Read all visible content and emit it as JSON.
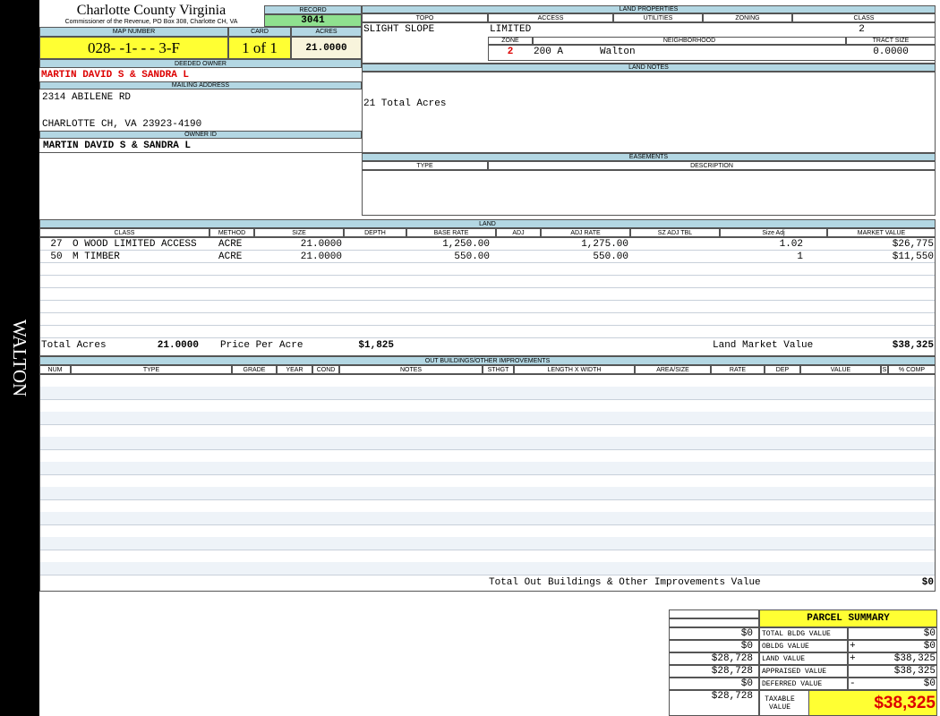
{
  "sidebar": "WALTON",
  "header": {
    "title": "Charlotte County Virginia",
    "subtitle": "Commissioner of the Revenue, PO Box 308, Charlotte CH, VA"
  },
  "record": {
    "label": "RECORD",
    "value": "3041"
  },
  "map_number": {
    "label": "MAP NUMBER",
    "value": "028- -1- - - 3-F"
  },
  "card": {
    "label": "CARD",
    "value": "1 of 1"
  },
  "acres": {
    "label": "ACRES",
    "value": "21.0000"
  },
  "deeded_owner": {
    "label": "DEEDED OWNER",
    "value": "MARTIN DAVID S & SANDRA L"
  },
  "mailing_address": {
    "label": "MAILING ADDRESS",
    "lines": [
      "2314 ABILENE RD",
      "CHARLOTTE CH, VA 23923-4190"
    ]
  },
  "owner_id": {
    "label": "OWNER ID",
    "value": "MARTIN DAVID S & SANDRA L"
  },
  "land_properties": {
    "title": "LAND PROPERTIES",
    "topo": {
      "label": "TOPO",
      "value": "SLIGHT SLOPE"
    },
    "access": {
      "label": "ACCESS",
      "value": "LIMITED"
    },
    "utilities": {
      "label": "UTILITIES"
    },
    "zoning": {
      "label": "ZONING"
    },
    "class": {
      "label": "CLASS",
      "value": "2"
    },
    "zone": {
      "label": "ZONE",
      "value": "2"
    },
    "neighborhood": {
      "label": "NEIGHBORHOOD",
      "code": "200 A",
      "name": "Walton"
    },
    "tract_size": {
      "label": "TRACT SIZE",
      "value": "0.0000"
    }
  },
  "land_notes": {
    "title": "LAND NOTES",
    "text": "21 Total Acres"
  },
  "easements": {
    "title": "EASEMENTS",
    "columns": [
      "TYPE",
      "DESCRIPTION"
    ]
  },
  "land": {
    "title": "LAND",
    "columns": [
      "CLASS",
      "METHOD",
      "SIZE",
      "DEPTH",
      "BASE RATE",
      "ADJ",
      "ADJ RATE",
      "SZ ADJ TBL",
      "Size Adj",
      "MARKET VALUE"
    ],
    "rows": [
      {
        "code": "27",
        "class": "O WOOD LIMITED ACCESS",
        "method": "ACRE",
        "size": "21.0000",
        "base_rate": "1,250.00",
        "adj_rate": "1,275.00",
        "size_adj": "1.02",
        "market_value": "$26,775"
      },
      {
        "code": "50",
        "class": "M TIMBER",
        "method": "ACRE",
        "size": "21.0000",
        "base_rate": "550.00",
        "adj_rate": "550.00",
        "size_adj": "1",
        "market_value": "$11,550"
      }
    ],
    "totals": {
      "total_acres_label": "Total Acres",
      "total_acres": "21.0000",
      "price_label": "Price Per Acre",
      "price": "$1,825",
      "market_label": "Land Market Value",
      "market": "$38,325"
    }
  },
  "out_buildings": {
    "title": "OUT BUILDINGS/OTHER IMPROVEMENTS",
    "columns": [
      "NUM",
      "TYPE",
      "GRADE",
      "YEAR",
      "COND",
      "NOTES",
      "STHGT",
      "LENGTH X WIDTH",
      "AREA/SIZE",
      "RATE",
      "DEP",
      "VALUE",
      "S",
      "% COMP"
    ],
    "total_label": "Total Out Buildings & Other Improvements Value",
    "total_value": "$0"
  },
  "parcel_summary": {
    "title": "PARCEL SUMMARY",
    "rows": [
      {
        "prior": "$0",
        "label": "TOTAL BLDG VALUE",
        "value": "$0"
      },
      {
        "prior": "$0",
        "label": "OBLDG VALUE",
        "op": "+",
        "value": "$0"
      },
      {
        "prior": "$28,728",
        "label": "LAND VALUE",
        "op": "+",
        "value": "$38,325"
      },
      {
        "prior": "$28,728",
        "label": "APPRAISED VALUE",
        "value": "$38,325"
      },
      {
        "prior": "$0",
        "label": "DEFERRED VALUE",
        "op": "-",
        "value": "$0"
      },
      {
        "prior": "$28,728",
        "label": "TAXABLE VALUE",
        "value": "$38,325"
      }
    ]
  }
}
